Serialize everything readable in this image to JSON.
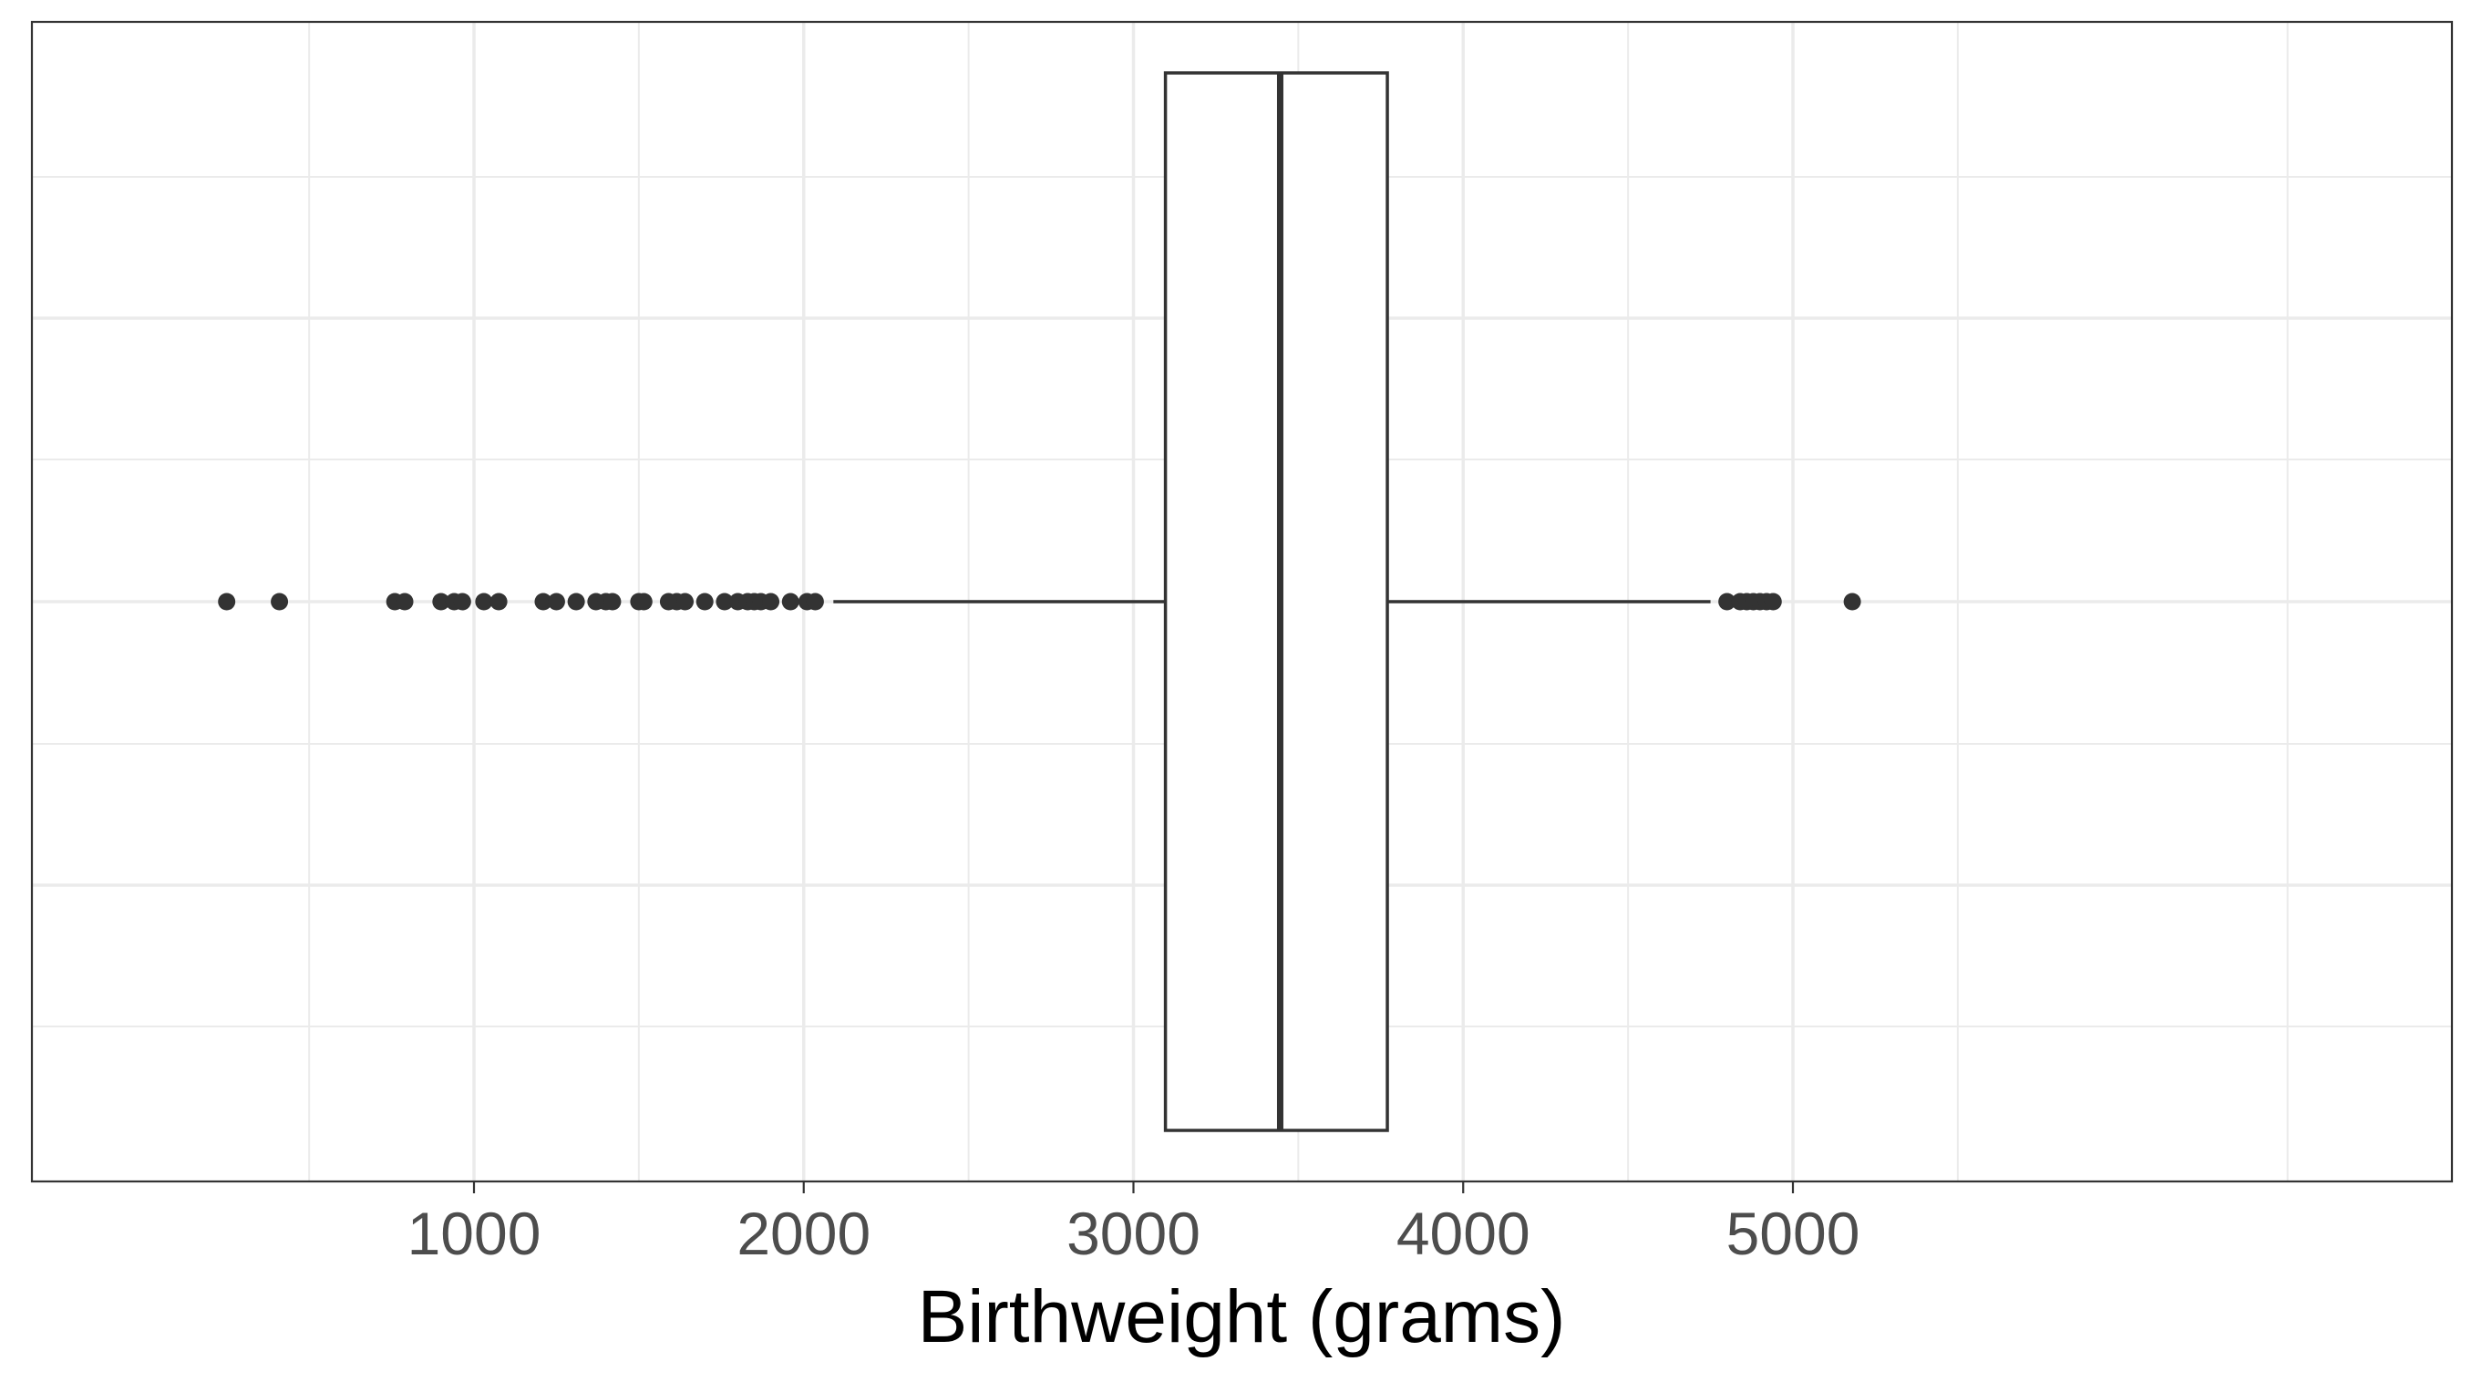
{
  "chart_data": {
    "type": "boxplot",
    "title": "",
    "xlabel": "Birthweight (grams)",
    "ylabel": "",
    "xlim": [
      0,
      5400
    ],
    "x_ticks": [
      1000,
      2000,
      3000,
      4000,
      5000
    ],
    "x_tick_labels": [
      "1000",
      "2000",
      "3000",
      "4000",
      "5000"
    ],
    "grid": true,
    "orientation": "horizontal",
    "box": {
      "lower_whisker": 2090,
      "q1": 3097,
      "median": 3445,
      "q3": 3770,
      "upper_whisker": 4750
    },
    "outliers": [
      250,
      410,
      760,
      790,
      900,
      940,
      965,
      1030,
      1075,
      1210,
      1250,
      1310,
      1370,
      1400,
      1420,
      1500,
      1515,
      1590,
      1615,
      1640,
      1700,
      1760,
      1800,
      1830,
      1850,
      1870,
      1900,
      1960,
      2010,
      2035,
      4800,
      4840,
      4860,
      4880,
      4900,
      4920,
      4940,
      5180
    ],
    "colors": {
      "box_outline": "#333333",
      "box_fill": "#ffffff",
      "points": "#333333",
      "grid_major": "#ebebeb",
      "panel_border": "#333333"
    }
  }
}
